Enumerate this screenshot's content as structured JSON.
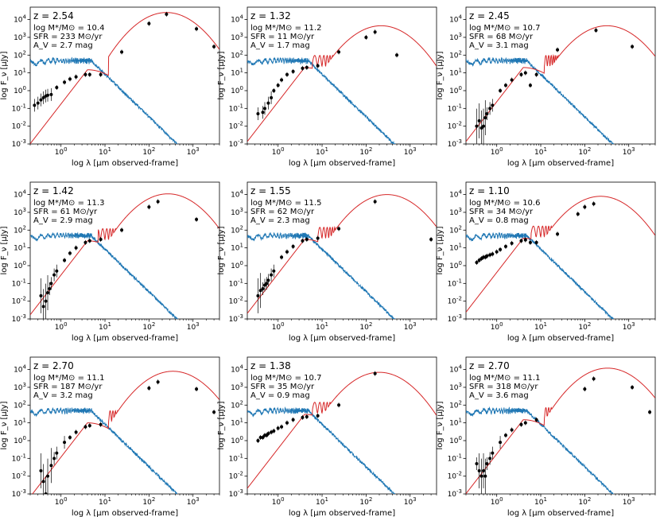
{
  "figure": {
    "xlabel": "log λ [μm observed-frame]",
    "ylabel": "log F_ν [μJy]",
    "colors": {
      "unattenuated": "#1f77b4",
      "attenuated": "#d62728",
      "points": "#000000"
    }
  },
  "chart_data": [
    {
      "type": "line",
      "panel": 1,
      "title": "z = 2.54",
      "mass": "log M*/M⊙ = 10.4",
      "sfr": "SFR = 233 M⊙/yr",
      "av": "A_V = 2.7 mag",
      "xlim": [
        0.2,
        4000
      ],
      "ylim": [
        0.001,
        50000
      ],
      "xscale": "log",
      "yscale": "log",
      "xticks": [
        "10^0",
        "10^1",
        "10^2",
        "10^3"
      ],
      "yticks": [
        "10^-3",
        "10^-2",
        "10^-1",
        "10^0",
        "10^1",
        "10^2",
        "10^3",
        "10^4"
      ],
      "blue_peak": 50,
      "red_opt_peak": 15,
      "red_ir_peak": 25000,
      "ir_peak_lambda": 250,
      "break_lambda": 12,
      "points": [
        [
          0.25,
          0.15
        ],
        [
          0.3,
          0.2
        ],
        [
          0.35,
          0.3
        ],
        [
          0.4,
          0.4
        ],
        [
          0.45,
          0.5
        ],
        [
          0.5,
          0.55
        ],
        [
          0.6,
          0.6
        ],
        [
          0.8,
          1.5
        ],
        [
          1.2,
          3
        ],
        [
          1.6,
          4.5
        ],
        [
          2.2,
          6
        ],
        [
          3.6,
          8
        ],
        [
          4.5,
          8
        ],
        [
          8,
          8
        ],
        [
          24,
          150
        ],
        [
          100,
          6000
        ],
        [
          250,
          20000
        ],
        [
          1200,
          3000
        ],
        [
          3000,
          300
        ]
      ]
    },
    {
      "type": "line",
      "panel": 2,
      "title": "z = 1.32",
      "mass": "log M*/M⊙ = 11.2",
      "sfr": "SFR = 11 M⊙/yr",
      "av": "A_V = 1.7 mag",
      "xlim": [
        0.2,
        4000
      ],
      "ylim": [
        0.001,
        50000
      ],
      "xscale": "log",
      "yscale": "log",
      "xticks": [
        "10^0",
        "10^1",
        "10^2",
        "10^3"
      ],
      "yticks": [
        "10^-3",
        "10^-2",
        "10^-1",
        "10^0",
        "10^1",
        "10^2",
        "10^3",
        "10^4"
      ],
      "blue_peak": 50,
      "red_opt_peak": 20,
      "red_ir_peak": 4500,
      "ir_peak_lambda": 220,
      "break_lambda": 6,
      "points": [
        [
          0.35,
          0.05
        ],
        [
          0.45,
          0.06
        ],
        [
          0.5,
          0.1
        ],
        [
          0.6,
          0.2
        ],
        [
          0.7,
          0.4
        ],
        [
          0.8,
          1
        ],
        [
          1.0,
          2
        ],
        [
          1.2,
          4
        ],
        [
          1.6,
          8
        ],
        [
          2.2,
          12
        ],
        [
          3.6,
          18
        ],
        [
          4.5,
          20
        ],
        [
          8,
          25
        ],
        [
          24,
          150
        ],
        [
          100,
          1000
        ],
        [
          160,
          2000
        ],
        [
          500,
          100
        ]
      ]
    },
    {
      "type": "line",
      "panel": 3,
      "title": "z = 2.45",
      "mass": "log M*/M⊙ = 10.7",
      "sfr": "SFR = 68 M⊙/yr",
      "av": "A_V = 3.1 mag",
      "xlim": [
        0.2,
        4000
      ],
      "ylim": [
        0.001,
        50000
      ],
      "xscale": "log",
      "yscale": "log",
      "xticks": [
        "10^0",
        "10^1",
        "10^2",
        "10^3"
      ],
      "yticks": [
        "10^-3",
        "10^-2",
        "10^-1",
        "10^0",
        "10^1",
        "10^2",
        "10^3",
        "10^4"
      ],
      "blue_peak": 50,
      "red_opt_peak": 20,
      "red_ir_peak": 4500,
      "ir_peak_lambda": 320,
      "break_lambda": 12,
      "points": [
        [
          0.35,
          0.01
        ],
        [
          0.4,
          0.02
        ],
        [
          0.45,
          0.008
        ],
        [
          0.5,
          0.01
        ],
        [
          0.55,
          0.03
        ],
        [
          0.6,
          0.05
        ],
        [
          0.7,
          0.1
        ],
        [
          0.8,
          0.15
        ],
        [
          1.2,
          1
        ],
        [
          1.6,
          2
        ],
        [
          2.2,
          4
        ],
        [
          3.6,
          8
        ],
        [
          4.5,
          10
        ],
        [
          5.8,
          2
        ],
        [
          8,
          8
        ],
        [
          24,
          200
        ],
        [
          180,
          2500
        ],
        [
          1200,
          300
        ]
      ]
    },
    {
      "type": "line",
      "panel": 4,
      "title": "z = 1.42",
      "mass": "log M*/M⊙ = 11.3",
      "sfr": "SFR = 61 M⊙/yr",
      "av": "A_V = 2.9 mag",
      "xlim": [
        0.2,
        4000
      ],
      "ylim": [
        0.001,
        50000
      ],
      "xscale": "log",
      "yscale": "log",
      "xticks": [
        "10^0",
        "10^1",
        "10^2",
        "10^3"
      ],
      "yticks": [
        "10^-3",
        "10^-2",
        "10^-1",
        "10^0",
        "10^1",
        "10^2",
        "10^3",
        "10^4"
      ],
      "blue_peak": 50,
      "red_opt_peak": 25,
      "red_ir_peak": 11000,
      "ir_peak_lambda": 270,
      "break_lambda": 7,
      "points": [
        [
          0.35,
          0.02
        ],
        [
          0.4,
          0.005
        ],
        [
          0.45,
          0.01
        ],
        [
          0.5,
          0.03
        ],
        [
          0.55,
          0.05
        ],
        [
          0.6,
          0.1
        ],
        [
          0.7,
          0.3
        ],
        [
          0.8,
          0.5
        ],
        [
          1.2,
          2
        ],
        [
          1.6,
          5
        ],
        [
          2.2,
          10
        ],
        [
          3.6,
          20
        ],
        [
          4.5,
          25
        ],
        [
          8,
          30
        ],
        [
          24,
          100
        ],
        [
          100,
          2000
        ],
        [
          160,
          4000
        ],
        [
          1200,
          400
        ]
      ]
    },
    {
      "type": "line",
      "panel": 5,
      "title": "z = 1.55",
      "mass": "log M*/M⊙ = 11.5",
      "sfr": "SFR = 62 M⊙/yr",
      "av": "A_V = 2.3 mag",
      "xlim": [
        0.2,
        4000
      ],
      "ylim": [
        0.001,
        50000
      ],
      "xscale": "log",
      "yscale": "log",
      "xticks": [
        "10^0",
        "10^1",
        "10^2",
        "10^3"
      ],
      "yticks": [
        "10^-3",
        "10^-2",
        "10^-1",
        "10^0",
        "10^1",
        "10^2",
        "10^3",
        "10^4"
      ],
      "blue_peak": 50,
      "red_opt_peak": 30,
      "red_ir_peak": 10000,
      "ir_peak_lambda": 300,
      "break_lambda": 8,
      "points": [
        [
          0.35,
          0.02
        ],
        [
          0.4,
          0.04
        ],
        [
          0.45,
          0.05
        ],
        [
          0.5,
          0.08
        ],
        [
          0.55,
          0.1
        ],
        [
          0.6,
          0.15
        ],
        [
          0.7,
          0.3
        ],
        [
          0.8,
          0.5
        ],
        [
          1.2,
          3
        ],
        [
          1.6,
          6
        ],
        [
          2.2,
          12
        ],
        [
          3.6,
          25
        ],
        [
          4.5,
          30
        ],
        [
          8,
          35
        ],
        [
          24,
          120
        ],
        [
          160,
          4000
        ],
        [
          3000,
          30
        ]
      ]
    },
    {
      "type": "line",
      "panel": 6,
      "title": "z = 1.10",
      "mass": "log M*/M⊙ = 10.6",
      "sfr": "SFR = 34 M⊙/yr",
      "av": "A_V = 0.8 mag",
      "xlim": [
        0.2,
        4000
      ],
      "ylim": [
        0.001,
        50000
      ],
      "xscale": "log",
      "yscale": "log",
      "xticks": [
        "10^0",
        "10^1",
        "10^2",
        "10^3"
      ],
      "yticks": [
        "10^-3",
        "10^-2",
        "10^-1",
        "10^0",
        "10^1",
        "10^2",
        "10^3",
        "10^4"
      ],
      "blue_peak": 50,
      "red_opt_peak": 35,
      "red_ir_peak": 8000,
      "ir_peak_lambda": 230,
      "break_lambda": 6,
      "points": [
        [
          0.35,
          1.5
        ],
        [
          0.4,
          2
        ],
        [
          0.45,
          2.5
        ],
        [
          0.5,
          3
        ],
        [
          0.55,
          3
        ],
        [
          0.6,
          3.5
        ],
        [
          0.7,
          4
        ],
        [
          0.8,
          4.5
        ],
        [
          1.0,
          6
        ],
        [
          1.2,
          8
        ],
        [
          1.6,
          12
        ],
        [
          2.2,
          18
        ],
        [
          3.6,
          25
        ],
        [
          4.5,
          28
        ],
        [
          5.8,
          20
        ],
        [
          8,
          20
        ],
        [
          24,
          60
        ],
        [
          70,
          800
        ],
        [
          100,
          2000
        ],
        [
          160,
          3000
        ]
      ]
    },
    {
      "type": "line",
      "panel": 7,
      "title": "z = 2.70",
      "mass": "log M*/M⊙ = 11.1",
      "sfr": "SFR = 187 M⊙/yr",
      "av": "A_V = 3.2 mag",
      "xlim": [
        0.2,
        4000
      ],
      "ylim": [
        0.001,
        50000
      ],
      "xscale": "log",
      "yscale": "log",
      "xticks": [
        "10^0",
        "10^1",
        "10^2",
        "10^3"
      ],
      "yticks": [
        "10^-3",
        "10^-2",
        "10^-1",
        "10^0",
        "10^1",
        "10^2",
        "10^3",
        "10^4"
      ],
      "blue_peak": 50,
      "red_opt_peak": 10,
      "red_ir_peak": 8000,
      "ir_peak_lambda": 350,
      "break_lambda": 12,
      "points": [
        [
          0.35,
          0.02
        ],
        [
          0.4,
          0.005
        ],
        [
          0.45,
          0.001
        ],
        [
          0.5,
          0.01
        ],
        [
          0.6,
          0.04
        ],
        [
          0.7,
          0.1
        ],
        [
          0.8,
          0.2
        ],
        [
          1.2,
          0.8
        ],
        [
          1.6,
          1.5
        ],
        [
          2.2,
          3
        ],
        [
          3.6,
          6
        ],
        [
          4.5,
          7
        ],
        [
          8,
          8
        ],
        [
          100,
          900
        ],
        [
          160,
          2000
        ],
        [
          1200,
          800
        ],
        [
          3000,
          40
        ]
      ]
    },
    {
      "type": "line",
      "panel": 8,
      "title": "z = 1.38",
      "mass": "log M*/M⊙ = 10.7",
      "sfr": "SFR = 35 M⊙/yr",
      "av": "A_V = 0.9 mag",
      "xlim": [
        0.2,
        4000
      ],
      "ylim": [
        0.001,
        50000
      ],
      "xscale": "log",
      "yscale": "log",
      "xticks": [
        "10^0",
        "10^1",
        "10^2",
        "10^3"
      ],
      "yticks": [
        "10^-3",
        "10^-2",
        "10^-1",
        "10^0",
        "10^1",
        "10^2",
        "10^3",
        "10^4"
      ],
      "blue_peak": 50,
      "red_opt_peak": 30,
      "red_ir_peak": 7000,
      "ir_peak_lambda": 200,
      "break_lambda": 6,
      "points": [
        [
          0.35,
          1
        ],
        [
          0.4,
          1.5
        ],
        [
          0.45,
          1.5
        ],
        [
          0.5,
          2
        ],
        [
          0.55,
          2
        ],
        [
          0.6,
          2.5
        ],
        [
          0.7,
          3
        ],
        [
          0.8,
          3.5
        ],
        [
          1.0,
          5
        ],
        [
          1.2,
          6
        ],
        [
          1.6,
          10
        ],
        [
          2.2,
          15
        ],
        [
          3.6,
          20
        ],
        [
          4.5,
          22
        ],
        [
          8,
          25
        ],
        [
          24,
          100
        ],
        [
          160,
          6000
        ]
      ]
    },
    {
      "type": "line",
      "panel": 9,
      "title": "z = 2.70",
      "mass": "log M*/M⊙ = 11.1",
      "sfr": "SFR = 318 M⊙/yr",
      "av": "A_V = 3.6 mag",
      "xlim": [
        0.2,
        4000
      ],
      "ylim": [
        0.001,
        50000
      ],
      "xscale": "log",
      "yscale": "log",
      "xticks": [
        "10^0",
        "10^1",
        "10^2",
        "10^3"
      ],
      "yticks": [
        "10^-3",
        "10^-2",
        "10^-1",
        "10^0",
        "10^1",
        "10^2",
        "10^3",
        "10^4"
      ],
      "blue_peak": 50,
      "red_opt_peak": 15,
      "red_ir_peak": 12000,
      "ir_peak_lambda": 330,
      "break_lambda": 12,
      "points": [
        [
          0.35,
          0.05
        ],
        [
          0.4,
          0.02
        ],
        [
          0.45,
          0.01
        ],
        [
          0.5,
          0.02
        ],
        [
          0.55,
          0.01
        ],
        [
          0.6,
          0.05
        ],
        [
          0.7,
          0.1
        ],
        [
          0.8,
          0.2
        ],
        [
          1.2,
          0.8
        ],
        [
          1.6,
          2
        ],
        [
          2.2,
          4
        ],
        [
          3.6,
          8
        ],
        [
          4.5,
          10
        ],
        [
          8,
          15
        ],
        [
          100,
          800
        ],
        [
          160,
          3000
        ],
        [
          1200,
          1000
        ],
        [
          3000,
          40
        ]
      ]
    }
  ]
}
